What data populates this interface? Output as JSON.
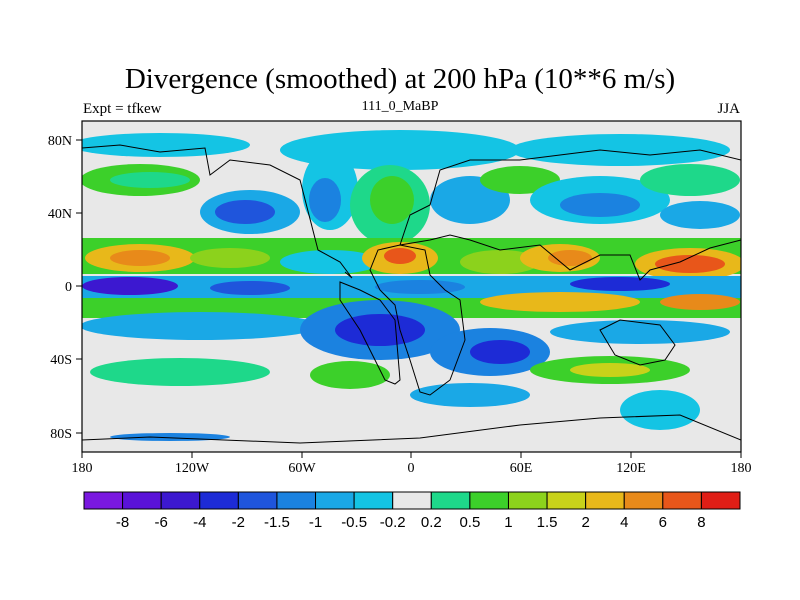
{
  "title": "Divergence (smoothed) at 200 hPa (10**6 m/s)",
  "left_label": "Expt = tfkew",
  "center_label": "111_0_MaBP",
  "right_label": "JJA",
  "lon_ticks": [
    "180",
    "120W",
    "60W",
    "0",
    "60E",
    "120E",
    "180"
  ],
  "lat_ticks": [
    "80N",
    "40N",
    "0",
    "40S",
    "80S"
  ],
  "colorbar": {
    "labels": [
      "-8",
      "-6",
      "-4",
      "-2",
      "-1.5",
      "-1",
      "-0.5",
      "-0.2",
      "0.2",
      "0.5",
      "1",
      "1.5",
      "2",
      "4",
      "6",
      "8"
    ],
    "colors": [
      "#7a18e0",
      "#5a12d8",
      "#3c18d0",
      "#1d2bd6",
      "#1f55dc",
      "#1b82e0",
      "#1aa8e6",
      "#14c4e4",
      "#e8e8e8",
      "#1ed88a",
      "#3cd02a",
      "#8cd21c",
      "#c8d21a",
      "#e8b81a",
      "#e88a1a",
      "#e8561a",
      "#e01e16"
    ]
  }
}
